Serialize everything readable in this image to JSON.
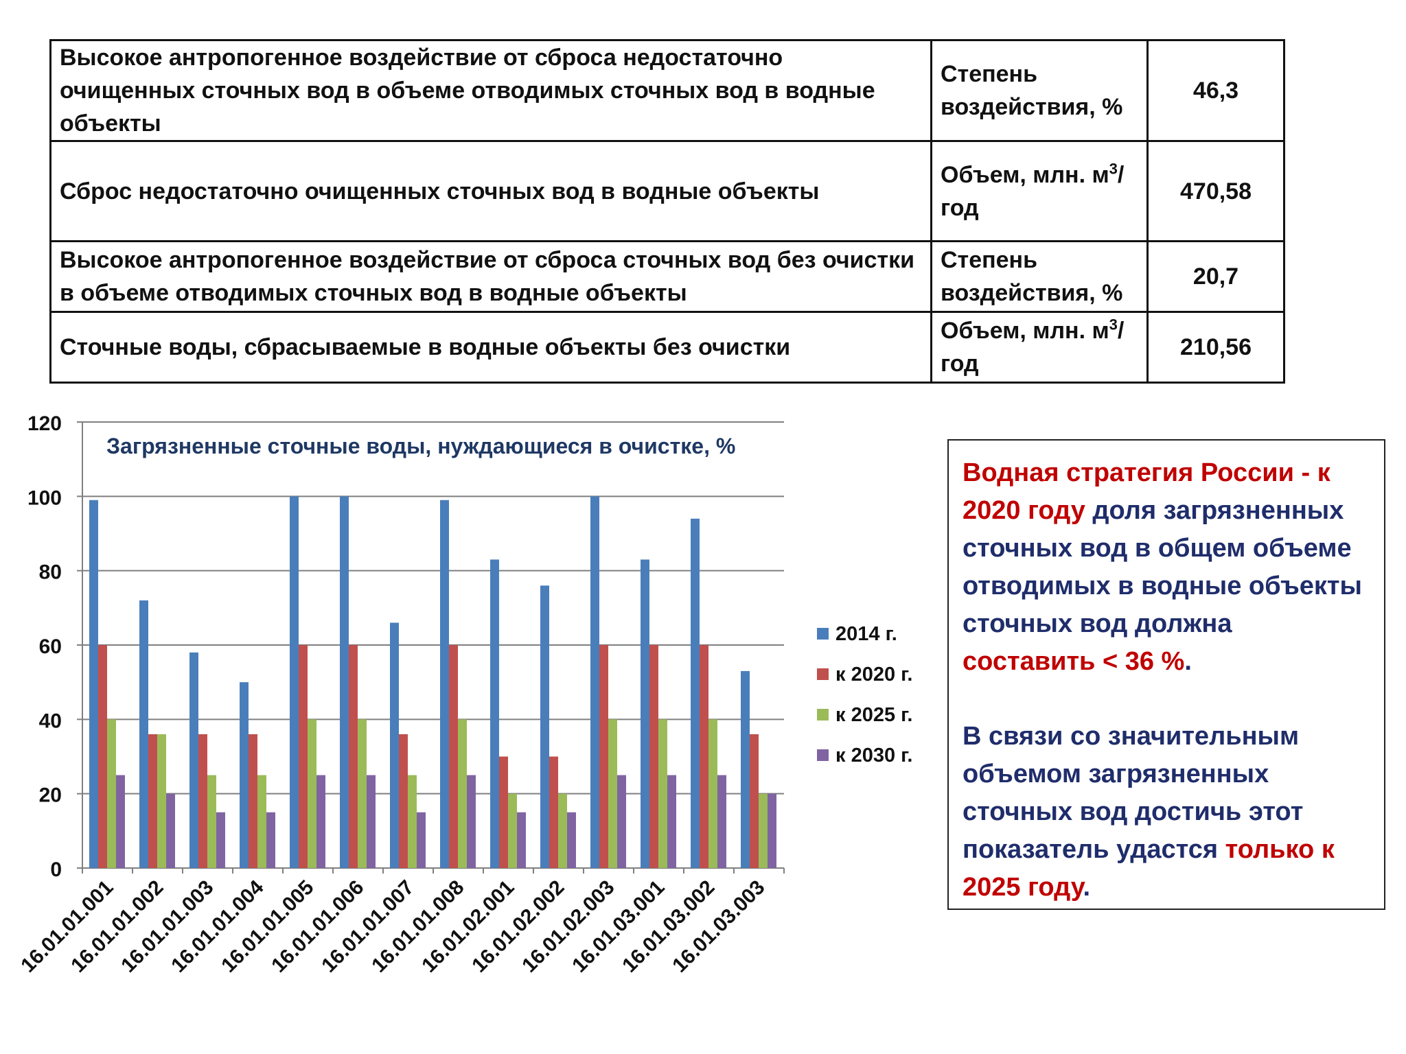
{
  "table": {
    "rows": [
      {
        "description": "Высокое антропогенное воздействие от сброса недостаточно очищенных сточных вод в объеме отводимых сточных вод в водные объекты",
        "unit": "Степень воздействия, %",
        "value": "46,3"
      },
      {
        "description": "Сброс недостаточно очищенных сточных вод в водные объекты",
        "unit_prefix": "Объем, млн. м",
        "unit_sup": "3",
        "unit_suffix": "/год",
        "value": "470,58"
      },
      {
        "description": "Высокое антропогенное воздействие от сброса сточных вод без очистки в объеме отводимых сточных вод в водные объекты",
        "unit": "Степень воздействия, %",
        "value": "20,7"
      },
      {
        "description": "Сточные воды, сбрасываемые в водные объекты без очистки",
        "unit_prefix": "Объем, млн. м",
        "unit_sup": "3",
        "unit_suffix": "/год",
        "value": "210,56"
      }
    ]
  },
  "chart_data": {
    "type": "bar",
    "title": "Загрязненные сточные воды, нуждающиеся в очистке, %",
    "categories": [
      "16.01.01.001",
      "16.01.01.002",
      "16.01.01.003",
      "16.01.01.004",
      "16.01.01.005",
      "16.01.01.006",
      "16.01.01.007",
      "16.01.01.008",
      "16.01.02.001",
      "16.01.02.002",
      "16.01.02.003",
      "16.01.03.001",
      "16.01.03.002",
      "16.01.03.003"
    ],
    "series": [
      {
        "name": "2014 г.",
        "color": "#4a7ebb",
        "values": [
          99,
          72,
          58,
          50,
          100,
          100,
          66,
          99,
          83,
          76,
          100,
          83,
          94,
          53
        ]
      },
      {
        "name": "к 2020 г.",
        "color": "#c0504d",
        "values": [
          60,
          36,
          36,
          36,
          60,
          60,
          36,
          60,
          30,
          30,
          60,
          60,
          60,
          36
        ]
      },
      {
        "name": "к 2025 г.",
        "color": "#9bbb59",
        "values": [
          40,
          36,
          25,
          25,
          40,
          40,
          25,
          40,
          20,
          20,
          40,
          40,
          40,
          20
        ]
      },
      {
        "name": "к 2030 г.",
        "color": "#8064a2",
        "values": [
          25,
          20,
          15,
          15,
          25,
          25,
          15,
          25,
          15,
          15,
          25,
          25,
          25,
          20
        ]
      }
    ],
    "ylim": [
      0,
      120
    ],
    "yticks": [
      0,
      20,
      40,
      60,
      80,
      100,
      120
    ],
    "grid": true,
    "legend_position": "right"
  },
  "note": {
    "p1": [
      {
        "text": "Водная стратегия России - к 2020 году",
        "color": "red"
      },
      {
        "text": " доля загрязненных сточных вод в общем объеме отводимых в водные объекты сточных вод должна ",
        "color": "blue"
      },
      {
        "text": "составить  <  36 %",
        "color": "red"
      },
      {
        "text": ".",
        "color": "blue"
      }
    ],
    "p2": [
      {
        "text": "В связи со значительным объемом загрязненных сточных вод достичь этот показатель удастся ",
        "color": "blue"
      },
      {
        "text": "только к 2025 году",
        "color": "red"
      },
      {
        "text": ".",
        "color": "blue"
      }
    ]
  }
}
